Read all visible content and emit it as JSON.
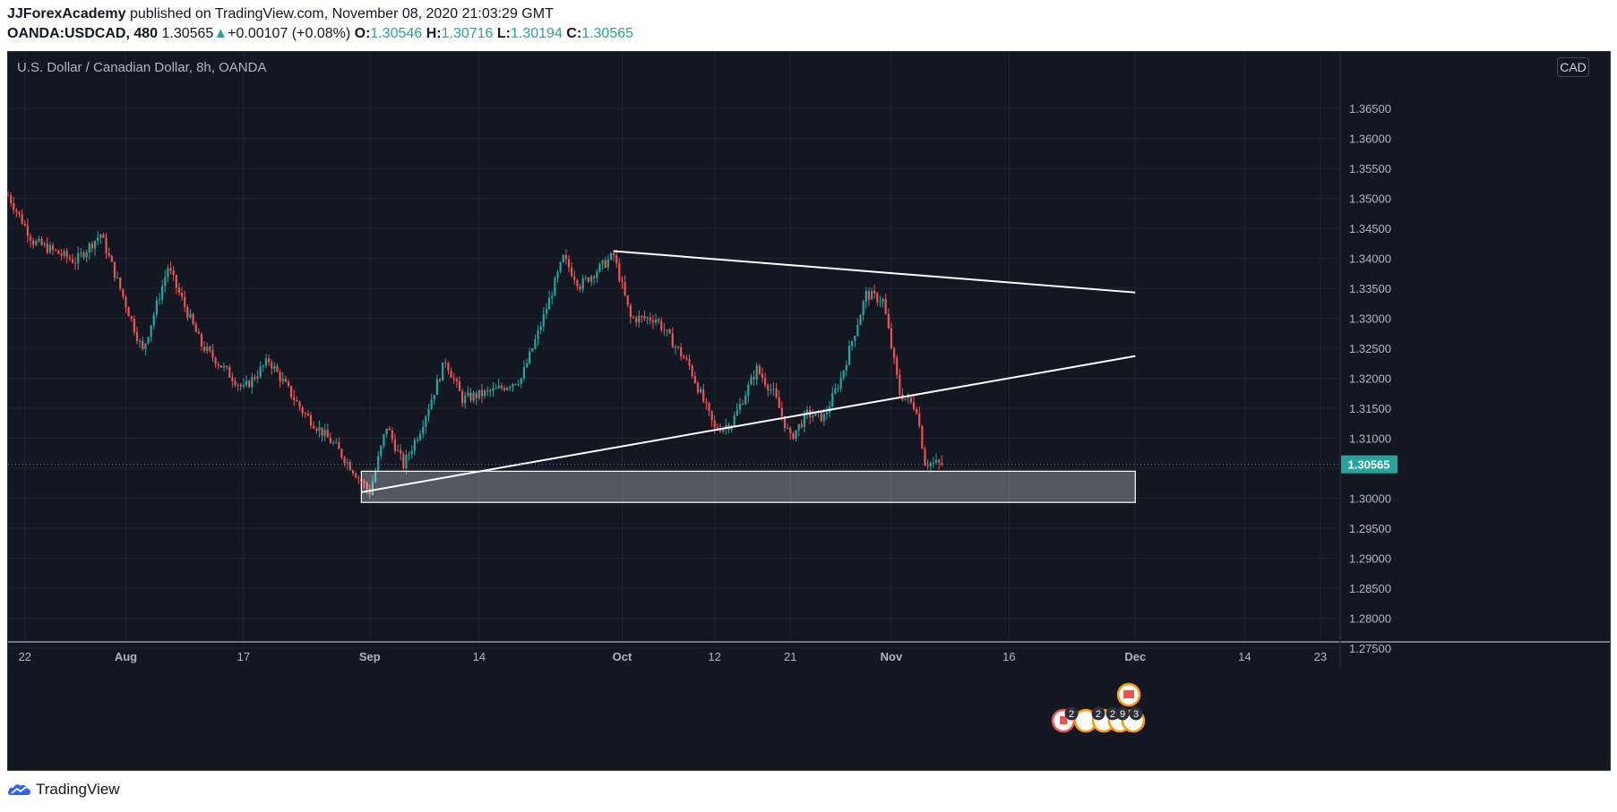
{
  "header": {
    "author": "JJForexAcademy",
    "published_text": "published on TradingView.com, November 08, 2020 21:03:29 GMT",
    "symbol": "OANDA:USDCAD, 480",
    "last": "1.30565",
    "change": "+0.00107 (+0.08%)",
    "open_label": "O:",
    "open": "1.30546",
    "high_label": "H:",
    "high": "1.30716",
    "low_label": "L:",
    "low": "1.30194",
    "close_label": "C:",
    "close": "1.30565"
  },
  "chart_title": "U.S. Dollar / Canadian Dollar, 8h, OANDA",
  "currency": "CAD",
  "footer": {
    "brand": "TradingView"
  },
  "colors": {
    "background": "#131722",
    "up": "#26a69a",
    "down": "#ef5350",
    "grid": "#1f2330",
    "axis_text": "#b2b5be",
    "price_tag": "#26a69a"
  },
  "chart_data": {
    "type": "candlestick",
    "x_ticks": [
      "22",
      "Aug",
      "17",
      "Sep",
      "14",
      "Oct",
      "12",
      "21",
      "Nov",
      "16",
      "Dec",
      "14",
      "23"
    ],
    "y_ticks": [
      "1.36500",
      "1.36000",
      "1.35500",
      "1.35000",
      "1.34500",
      "1.34000",
      "1.33500",
      "1.33000",
      "1.32500",
      "1.32000",
      "1.31500",
      "1.31000",
      "1.30500",
      "1.30000",
      "1.29500",
      "1.29000",
      "1.28500",
      "1.28000",
      "1.27500"
    ],
    "ylim": [
      1.2745,
      1.3705
    ],
    "current_price": "1.30565",
    "waypoints": [
      {
        "d": "2020-07-20",
        "p": 1.3505
      },
      {
        "d": "2020-07-23",
        "p": 1.3428
      },
      {
        "d": "2020-07-28",
        "p": 1.3395
      },
      {
        "d": "2020-07-31",
        "p": 1.344
      },
      {
        "d": "2020-08-05",
        "p": 1.3245
      },
      {
        "d": "2020-08-08",
        "p": 1.3385
      },
      {
        "d": "2020-08-12",
        "p": 1.3255
      },
      {
        "d": "2020-08-17",
        "p": 1.3182
      },
      {
        "d": "2020-08-20",
        "p": 1.323
      },
      {
        "d": "2020-08-24",
        "p": 1.3145
      },
      {
        "d": "2020-08-28",
        "p": 1.3085
      },
      {
        "d": "2020-09-01",
        "p": 1.301
      },
      {
        "d": "2020-09-03",
        "p": 1.312
      },
      {
        "d": "2020-09-05",
        "p": 1.3055
      },
      {
        "d": "2020-09-07",
        "p": 1.3115
      },
      {
        "d": "2020-09-10",
        "p": 1.323
      },
      {
        "d": "2020-09-12",
        "p": 1.3165
      },
      {
        "d": "2020-09-16",
        "p": 1.318
      },
      {
        "d": "2020-09-19",
        "p": 1.32
      },
      {
        "d": "2020-09-21",
        "p": 1.3275
      },
      {
        "d": "2020-09-24",
        "p": 1.34
      },
      {
        "d": "2020-09-26",
        "p": 1.3355
      },
      {
        "d": "2020-09-30",
        "p": 1.3405
      },
      {
        "d": "2020-10-02",
        "p": 1.33
      },
      {
        "d": "2020-10-05",
        "p": 1.33
      },
      {
        "d": "2020-10-07",
        "p": 1.326
      },
      {
        "d": "2020-10-09",
        "p": 1.322
      },
      {
        "d": "2020-10-12",
        "p": 1.3115
      },
      {
        "d": "2020-10-14",
        "p": 1.3125
      },
      {
        "d": "2020-10-17",
        "p": 1.3215
      },
      {
        "d": "2020-10-19",
        "p": 1.3175
      },
      {
        "d": "2020-10-21",
        "p": 1.31
      },
      {
        "d": "2020-10-23",
        "p": 1.314
      },
      {
        "d": "2020-10-25",
        "p": 1.3135
      },
      {
        "d": "2020-10-27",
        "p": 1.32
      },
      {
        "d": "2020-10-30",
        "p": 1.334
      },
      {
        "d": "2020-11-01",
        "p": 1.333
      },
      {
        "d": "2020-11-03",
        "p": 1.3175
      },
      {
        "d": "2020-11-05",
        "p": 1.315
      },
      {
        "d": "2020-11-06",
        "p": 1.306
      },
      {
        "d": "2020-11-08",
        "p": 1.30565
      }
    ],
    "trendlines": [
      {
        "name": "resistance",
        "from": {
          "d": "2020-09-30",
          "p": 1.3412
        },
        "to": {
          "d": "2020-12-01",
          "p": 1.3343
        }
      },
      {
        "name": "support",
        "from": {
          "d": "2020-08-31",
          "p": 1.301
        },
        "to": {
          "d": "2020-12-01",
          "p": 1.3237
        }
      }
    ],
    "zone": {
      "from": "2020-08-31",
      "to": "2020-12-01",
      "top": 1.3045,
      "bottom": 1.2993
    },
    "event_markers": [
      "2",
      "2",
      "2",
      "9",
      "3"
    ]
  }
}
